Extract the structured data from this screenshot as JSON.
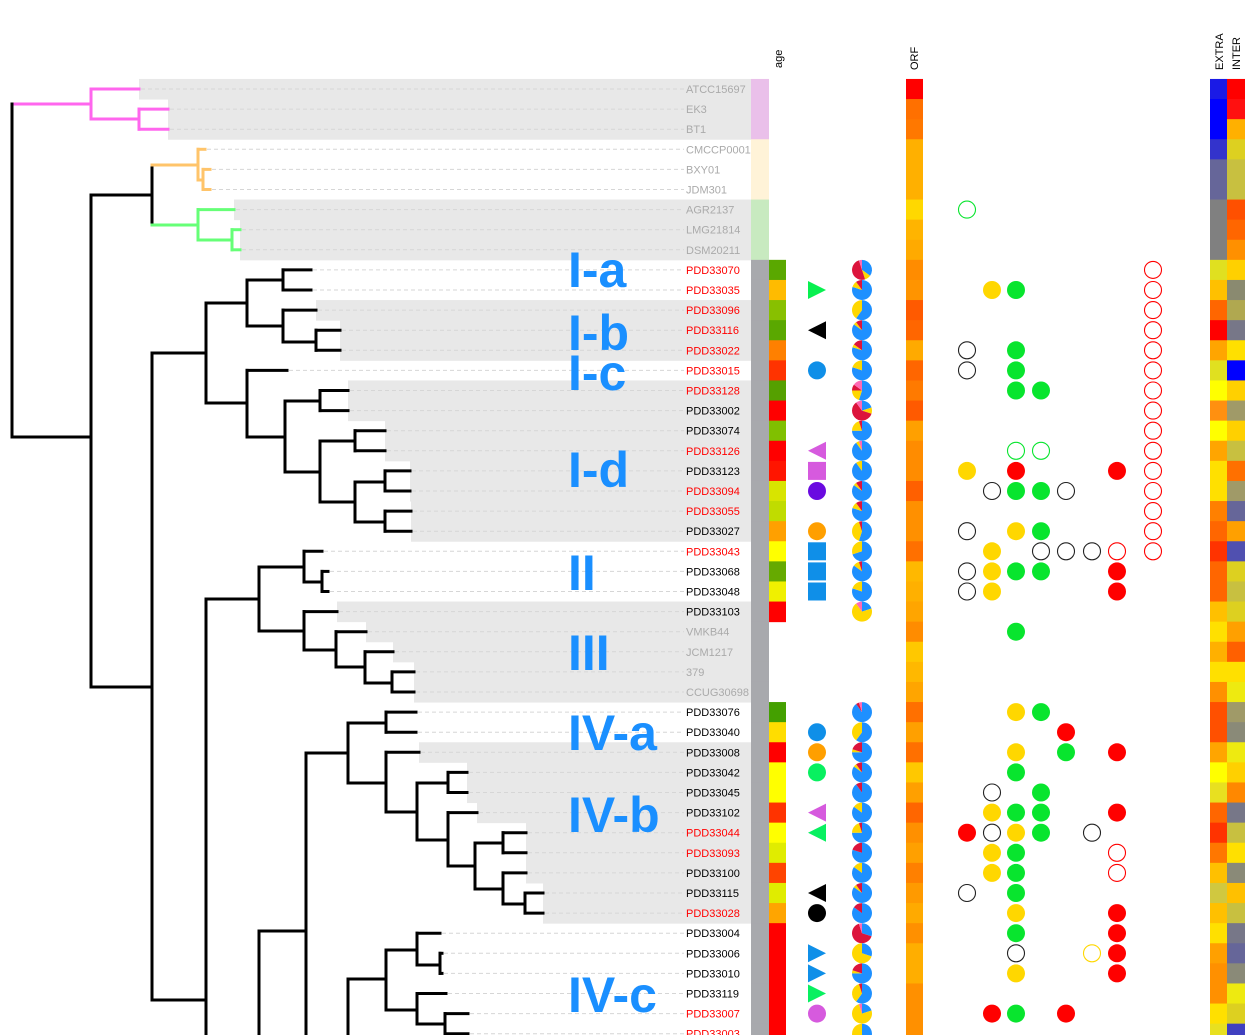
{
  "headers": {
    "age": "age",
    "orf": "ORF",
    "extra": "EXTRA",
    "inter": "INTER"
  },
  "clades": [
    "I-a",
    "I-b",
    "I-c",
    "I-d",
    "II",
    "III",
    "IV-a",
    "IV-b",
    "IV-c"
  ],
  "colors": {
    "label_gray": "#aaaaaa",
    "label_red": "#ff0000",
    "label_black": "#000000",
    "clade_text": "#1a8fff",
    "shade": "#e8e8e8",
    "group_pink": "#eac0ea",
    "group_cream": "#fff3d8",
    "group_green": "#c8eac0",
    "group_gray": "#a8a9ad",
    "branch_pink": "#ff66ee",
    "branch_orange": "#ffc46a",
    "branch_green": "#66ff77",
    "branch_black": "#000000",
    "pie_blue": "#1e90ff",
    "pie_yellow": "#ffd700",
    "pie_crimson": "#dc143c",
    "pie_pink": "#ff69b4",
    "dot_green": "#08e52e",
    "dot_yellow": "#ffd700",
    "dot_red": "#ff0000",
    "dot_black": "#222222"
  },
  "rows": [
    {
      "label": "ATCC15697",
      "lc": "gray",
      "group": "pink",
      "orf": "#ff0000",
      "extra": "#1a1ae6",
      "inter": "#ff0000"
    },
    {
      "label": "EK3",
      "lc": "gray",
      "group": "pink",
      "orf": "#ff7000",
      "extra": "#0000ff",
      "inter": "#ff1010"
    },
    {
      "label": "BT1",
      "lc": "gray",
      "group": "pink",
      "orf": "#ff7800",
      "extra": "#0000ff",
      "inter": "#ffb000"
    },
    {
      "label": "CMCCP0001",
      "lc": "gray",
      "group": "cream",
      "orf": "#ffb000",
      "extra": "#3333cc",
      "inter": "#ddd020"
    },
    {
      "label": "BXY01",
      "lc": "gray",
      "group": "cream",
      "orf": "#ffb000",
      "extra": "#666699",
      "inter": "#c8c040"
    },
    {
      "label": "JDM301",
      "lc": "gray",
      "group": "cream",
      "orf": "#ffb000",
      "extra": "#666699",
      "inter": "#c8c040"
    },
    {
      "label": "AGR2137",
      "lc": "gray",
      "group": "green",
      "orf": "#ffd800",
      "extra": "#808080",
      "inter": "#ff5000"
    },
    {
      "label": "LMG21814",
      "lc": "gray",
      "group": "green",
      "orf": "#ffb400",
      "extra": "#808080",
      "inter": "#ff6600"
    },
    {
      "label": "DSM20211",
      "lc": "gray",
      "group": "green",
      "orf": "#ffaa00",
      "extra": "#808080",
      "inter": "#ff9000"
    },
    {
      "label": "PDD33070",
      "lc": "red",
      "group": "gray",
      "age": "#5aa800",
      "orf": "#ff8c00",
      "extra": "#e0e020",
      "inter": "#ffd000",
      "pie": [
        0.35,
        0.1,
        0.5,
        0.05
      ]
    },
    {
      "label": "PDD33035",
      "lc": "red",
      "group": "gray",
      "age": "#ffbb00",
      "orf": "#ff9400",
      "extra": "#ffc000",
      "inter": "#8a8a70",
      "pie": [
        0.8,
        0.1,
        0.1,
        0
      ],
      "shape": "tri-right",
      "shape_color": "#08f050"
    },
    {
      "label": "PDD33096",
      "lc": "red",
      "group": "gray",
      "age": "#88c000",
      "orf": "#ff5a00",
      "extra": "#ff6600",
      "inter": "#b0a850",
      "pie": [
        0.6,
        0.4,
        0,
        0
      ]
    },
    {
      "label": "PDD33116",
      "lc": "red",
      "group": "gray",
      "age": "#5aa800",
      "orf": "#ff6600",
      "extra": "#ff0000",
      "inter": "#777788",
      "pie": [
        0.85,
        0.05,
        0.1,
        0
      ],
      "shape": "tri-left",
      "shape_color": "#000000"
    },
    {
      "label": "PDD33022",
      "lc": "red",
      "group": "gray",
      "age": "#ff8000",
      "orf": "#ffaa00",
      "extra": "#ffa500",
      "inter": "#ffe000",
      "pie": [
        0.8,
        0.05,
        0.15,
        0
      ]
    },
    {
      "label": "PDD33015",
      "lc": "red",
      "group": "gray",
      "age": "#ff3300",
      "orf": "#ff6600",
      "extra": "#e0e020",
      "inter": "#0000ff",
      "pie": [
        0.8,
        0.2,
        0,
        0
      ],
      "shape": "circle",
      "shape_color": "#0f8fe8"
    },
    {
      "label": "PDD33128",
      "lc": "red",
      "group": "gray",
      "age": "#55a000",
      "orf": "#ff7a00",
      "extra": "#ffff00",
      "inter": "#ffd000",
      "pie": [
        0.55,
        0.2,
        0.1,
        0.15
      ]
    },
    {
      "label": "PDD33002",
      "lc": "black",
      "group": "gray",
      "age": "#ff0000",
      "orf": "#ff5a00",
      "extra": "#ff9010",
      "inter": "#a09a68",
      "pie": [
        0.2,
        0.1,
        0.6,
        0.1
      ]
    },
    {
      "label": "PDD33074",
      "lc": "black",
      "group": "gray",
      "age": "#80c000",
      "orf": "#ffa000",
      "extra": "#ffff00",
      "inter": "#ffd000",
      "pie": [
        0.75,
        0.2,
        0.05,
        0
      ]
    },
    {
      "label": "PDD33126",
      "lc": "red",
      "group": "gray",
      "age": "#ff0000",
      "orf": "#ff8c00",
      "extra": "#ffa500",
      "inter": "#c8c040",
      "pie": [
        0.9,
        0.05,
        0,
        0.05
      ],
      "shape": "tri-left",
      "shape_color": "#d65ade"
    },
    {
      "label": "PDD33123",
      "lc": "black",
      "group": "gray",
      "age": "#ff1500",
      "orf": "#ff8c00",
      "extra": "#ffe000",
      "inter": "#ff7000",
      "pie": [
        0.9,
        0.1,
        0,
        0
      ],
      "shape": "square",
      "shape_color": "#d65ade"
    },
    {
      "label": "PDD33094",
      "lc": "red",
      "group": "gray",
      "age": "#d8e400",
      "orf": "#ff6000",
      "extra": "#ffe000",
      "inter": "#a09a68",
      "pie": [
        0.85,
        0.05,
        0.1,
        0
      ],
      "shape": "circle",
      "shape_color": "#6a0ae0"
    },
    {
      "label": "PDD33055",
      "lc": "red",
      "group": "gray",
      "age": "#c0dc00",
      "orf": "#ff9000",
      "extra": "#ff8000",
      "inter": "#666699",
      "pie": [
        0.8,
        0.1,
        0.1,
        0
      ]
    },
    {
      "label": "PDD33027",
      "lc": "black",
      "group": "gray",
      "age": "#ffa000",
      "orf": "#ff9000",
      "extra": "#ff6600",
      "inter": "#ffa000",
      "pie": [
        0.55,
        0.4,
        0.05,
        0
      ],
      "shape": "circle",
      "shape_color": "#ff9f00"
    },
    {
      "label": "PDD33043",
      "lc": "red",
      "group": "gray",
      "age": "#ffff00",
      "orf": "#ff7000",
      "extra": "#ff3300",
      "inter": "#5050b0",
      "pie": [
        0.7,
        0.3,
        0,
        0
      ],
      "shape": "square",
      "shape_color": "#0f8fe8"
    },
    {
      "label": "PDD33068",
      "lc": "black",
      "group": "gray",
      "age": "#66aa00",
      "orf": "#ffb800",
      "extra": "#ff6600",
      "inter": "#ddd020",
      "pie": [
        0.85,
        0.1,
        0.05,
        0
      ],
      "shape": "square",
      "shape_color": "#0f8fe8"
    },
    {
      "label": "PDD33048",
      "lc": "black",
      "group": "gray",
      "age": "#f0f000",
      "orf": "#ffb000",
      "extra": "#ff6600",
      "inter": "#c8c040",
      "pie": [
        0.8,
        0.2,
        0,
        0
      ],
      "shape": "square",
      "shape_color": "#0f8fe8"
    },
    {
      "label": "PDD33103",
      "lc": "black",
      "group": "gray",
      "age": "#ff0000",
      "orf": "#ffa500",
      "extra": "#ffc000",
      "inter": "#ddd020",
      "pie": [
        0.2,
        0.7,
        0,
        0.1
      ]
    },
    {
      "label": "VMKB44",
      "lc": "gray",
      "group": "gray",
      "orf": "#ff8c00",
      "extra": "#ffe000",
      "inter": "#ffa000"
    },
    {
      "label": "JCM1217",
      "lc": "gray",
      "group": "gray",
      "orf": "#ffc800",
      "extra": "#ffb000",
      "inter": "#ff6000"
    },
    {
      "label": "379",
      "lc": "gray",
      "group": "gray",
      "orf": "#ffb800",
      "extra": "#ffe000",
      "inter": "#ffe000"
    },
    {
      "label": "CCUG30698",
      "lc": "gray",
      "group": "gray",
      "orf": "#ffa500",
      "extra": "#ff9000",
      "inter": "#eeea10"
    },
    {
      "label": "PDD33076",
      "lc": "black",
      "group": "gray",
      "age": "#44a000",
      "orf": "#ff7000",
      "extra": "#ff5000",
      "inter": "#a09a68",
      "pie": [
        0.9,
        0,
        0.05,
        0.05
      ]
    },
    {
      "label": "PDD33040",
      "lc": "black",
      "group": "gray",
      "age": "#ffdd00",
      "orf": "#ffa000",
      "extra": "#ff5000",
      "inter": "#8a8a78",
      "pie": [
        0.6,
        0.4,
        0,
        0
      ],
      "shape": "circle",
      "shape_color": "#0f8fe8"
    },
    {
      "label": "PDD33008",
      "lc": "black",
      "group": "gray",
      "age": "#ff0000",
      "orf": "#ff7000",
      "extra": "#ffa500",
      "inter": "#eeea10",
      "pie": [
        0.75,
        0.05,
        0.2,
        0
      ],
      "shape": "circle",
      "shape_color": "#ff9f00"
    },
    {
      "label": "PDD33042",
      "lc": "black",
      "group": "gray",
      "age": "#ffff00",
      "orf": "#ffc800",
      "extra": "#ffff00",
      "inter": "#ffd000",
      "pie": [
        0.85,
        0.05,
        0.1,
        0
      ],
      "shape": "circle",
      "shape_color": "#08f060"
    },
    {
      "label": "PDD33045",
      "lc": "black",
      "group": "gray",
      "age": "#ffff00",
      "orf": "#ffa000",
      "extra": "#e8e020",
      "inter": "#ff8800",
      "pie": [
        0.9,
        0,
        0.1,
        0
      ]
    },
    {
      "label": "PDD33102",
      "lc": "black",
      "group": "gray",
      "age": "#ff3300",
      "orf": "#ff6600",
      "extra": "#ff6600",
      "inter": "#777788",
      "pie": [
        0.85,
        0.15,
        0,
        0
      ],
      "shape": "tri-left",
      "shape_color": "#d65ade"
    },
    {
      "label": "PDD33044",
      "lc": "red",
      "group": "gray",
      "age": "#ffff00",
      "orf": "#ff9000",
      "extra": "#ff3300",
      "inter": "#c8c040",
      "pie": [
        0.75,
        0.2,
        0.05,
        0
      ],
      "shape": "tri-left",
      "shape_color": "#08f060"
    },
    {
      "label": "PDD33093",
      "lc": "red",
      "group": "gray",
      "age": "#e0ec00",
      "orf": "#ffa000",
      "extra": "#ff7700",
      "inter": "#ffe000",
      "pie": [
        0.8,
        0,
        0.2,
        0
      ]
    },
    {
      "label": "PDD33100",
      "lc": "black",
      "group": "gray",
      "age": "#ff4400",
      "orf": "#ff8000",
      "extra": "#ffc000",
      "inter": "#8a8a78",
      "pie": [
        0.85,
        0.15,
        0,
        0
      ]
    },
    {
      "label": "PDD33115",
      "lc": "black",
      "group": "gray",
      "age": "#e0ec00",
      "orf": "#ff9a00",
      "extra": "#d0c840",
      "inter": "#ffc000",
      "pie": [
        0.85,
        0.05,
        0.1,
        0
      ],
      "shape": "tri-left",
      "shape_color": "#000000"
    },
    {
      "label": "PDD33028",
      "lc": "red",
      "group": "gray",
      "age": "#ffa500",
      "orf": "#ffaa00",
      "extra": "#ffc000",
      "inter": "#c8c040",
      "pie": [
        0.85,
        0,
        0.15,
        0
      ],
      "shape": "circle",
      "shape_color": "#000000"
    },
    {
      "label": "PDD33004",
      "lc": "black",
      "group": "gray",
      "age": "#ff0000",
      "orf": "#ff9000",
      "extra": "#ffe000",
      "inter": "#777788",
      "pie": [
        0.3,
        0,
        0.65,
        0.05
      ]
    },
    {
      "label": "PDD33006",
      "lc": "black",
      "group": "gray",
      "age": "#ff0000",
      "orf": "#ffae00",
      "extra": "#ffa000",
      "inter": "#666699",
      "pie": [
        0.3,
        0.7,
        0,
        0
      ],
      "shape": "tri-right",
      "shape_color": "#0f8fe8"
    },
    {
      "label": "PDD33010",
      "lc": "black",
      "group": "gray",
      "age": "#ff0000",
      "orf": "#ffae00",
      "extra": "#ff9000",
      "inter": "#8a8a78",
      "pie": [
        0.75,
        0.05,
        0.2,
        0
      ],
      "shape": "tri-right",
      "shape_color": "#0f8fe8"
    },
    {
      "label": "PDD33119",
      "lc": "black",
      "group": "gray",
      "age": "#ff0000",
      "orf": "#ff9000",
      "extra": "#ff9000",
      "inter": "#eeea10",
      "pie": [
        0.6,
        0.35,
        0.05,
        0
      ],
      "shape": "tri-right",
      "shape_color": "#08f060"
    },
    {
      "label": "PDD33007",
      "lc": "red",
      "group": "gray",
      "age": "#ff0000",
      "orf": "#ff9000",
      "extra": "#ffe000",
      "inter": "#ddd020",
      "pie": [
        0.2,
        0.75,
        0,
        0.05
      ],
      "shape": "circle",
      "shape_color": "#d65ade"
    },
    {
      "label": "PDD33003",
      "lc": "red",
      "group": "gray",
      "age": "#ff0000",
      "orf": "#ff9000",
      "extra": "#e8e020",
      "inter": "#4040c0",
      "pie": [
        0.5,
        0.5,
        0,
        0
      ]
    }
  ],
  "shaded_rows": [
    0,
    1,
    2,
    6,
    7,
    8,
    11,
    12,
    13,
    15,
    16,
    17,
    18,
    19,
    20,
    21,
    22,
    26,
    27,
    28,
    29,
    30,
    33,
    34,
    35,
    36,
    37,
    38,
    39,
    40,
    41
  ],
  "dots": [
    [
      6,
      0,
      "go"
    ],
    [
      10,
      1,
      "y"
    ],
    [
      10,
      2,
      "g"
    ],
    [
      13,
      0,
      "k"
    ],
    [
      13,
      2,
      "g"
    ],
    [
      14,
      0,
      "k"
    ],
    [
      14,
      2,
      "g"
    ],
    [
      15,
      2,
      "g"
    ],
    [
      15,
      3,
      "g"
    ],
    [
      18,
      2,
      "go"
    ],
    [
      18,
      3,
      "go"
    ],
    [
      19,
      0,
      "y"
    ],
    [
      19,
      2,
      "r"
    ],
    [
      19,
      6,
      "r"
    ],
    [
      20,
      1,
      "k"
    ],
    [
      20,
      2,
      "g"
    ],
    [
      20,
      3,
      "g"
    ],
    [
      20,
      4,
      "k"
    ],
    [
      22,
      0,
      "k"
    ],
    [
      22,
      2,
      "y"
    ],
    [
      22,
      3,
      "g"
    ],
    [
      23,
      1,
      "y"
    ],
    [
      23,
      3,
      "k"
    ],
    [
      23,
      4,
      "k"
    ],
    [
      23,
      5,
      "k"
    ],
    [
      23,
      6,
      "ro"
    ],
    [
      24,
      0,
      "k"
    ],
    [
      24,
      1,
      "y"
    ],
    [
      24,
      2,
      "g"
    ],
    [
      24,
      3,
      "g"
    ],
    [
      24,
      6,
      "r"
    ],
    [
      25,
      0,
      "k"
    ],
    [
      25,
      1,
      "y"
    ],
    [
      25,
      6,
      "r"
    ],
    [
      9,
      7,
      "ro"
    ],
    [
      10,
      7,
      "ro"
    ],
    [
      11,
      7,
      "ro"
    ],
    [
      12,
      7,
      "ro"
    ],
    [
      13,
      7,
      "ro"
    ],
    [
      14,
      7,
      "ro"
    ],
    [
      15,
      7,
      "ro"
    ],
    [
      16,
      7,
      "ro"
    ],
    [
      17,
      7,
      "ro"
    ],
    [
      18,
      7,
      "ro"
    ],
    [
      19,
      7,
      "ro"
    ],
    [
      20,
      7,
      "ro"
    ],
    [
      21,
      7,
      "ro"
    ],
    [
      22,
      7,
      "ro"
    ],
    [
      23,
      7,
      "ro"
    ],
    [
      27,
      2,
      "g"
    ],
    [
      31,
      2,
      "y"
    ],
    [
      31,
      3,
      "g"
    ],
    [
      32,
      4,
      "r"
    ],
    [
      33,
      2,
      "y"
    ],
    [
      33,
      4,
      "g"
    ],
    [
      33,
      6,
      "r"
    ],
    [
      34,
      2,
      "g"
    ],
    [
      35,
      1,
      "k"
    ],
    [
      35,
      3,
      "g"
    ],
    [
      36,
      1,
      "y"
    ],
    [
      36,
      2,
      "g"
    ],
    [
      36,
      3,
      "g"
    ],
    [
      36,
      6,
      "r"
    ],
    [
      37,
      0,
      "r"
    ],
    [
      37,
      1,
      "k"
    ],
    [
      37,
      2,
      "y"
    ],
    [
      37,
      3,
      "g"
    ],
    [
      37,
      5,
      "k"
    ],
    [
      38,
      1,
      "y"
    ],
    [
      38,
      2,
      "g"
    ],
    [
      38,
      6,
      "ro"
    ],
    [
      39,
      1,
      "y"
    ],
    [
      39,
      2,
      "g"
    ],
    [
      39,
      6,
      "ro"
    ],
    [
      40,
      0,
      "k"
    ],
    [
      40,
      2,
      "g"
    ],
    [
      41,
      2,
      "y"
    ],
    [
      41,
      6,
      "r"
    ],
    [
      42,
      2,
      "g"
    ],
    [
      42,
      6,
      "r"
    ],
    [
      43,
      2,
      "k"
    ],
    [
      43,
      5,
      "yo"
    ],
    [
      43,
      6,
      "r"
    ],
    [
      44,
      2,
      "y"
    ],
    [
      44,
      6,
      "r"
    ],
    [
      46,
      1,
      "r"
    ],
    [
      46,
      2,
      "g"
    ],
    [
      46,
      4,
      "r"
    ]
  ]
}
